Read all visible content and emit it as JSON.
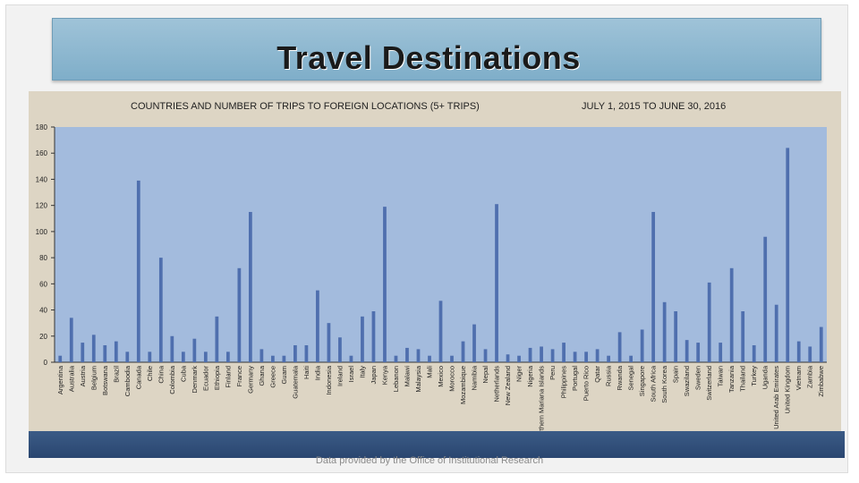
{
  "title": "Travel Destinations",
  "subtitle_left": "COUNTRIES AND NUMBER OF TRIPS TO FOREIGN LOCATIONS (5+ TRIPS)",
  "subtitle_right": "JULY 1, 2015 TO JUNE 30, 2016",
  "footer": "Data provided by the Office of Institutional Research",
  "colors": {
    "bar": "#4f6fae",
    "plot_bg": "#a3bbdd"
  },
  "chart_data": {
    "type": "bar",
    "title": "",
    "xlabel": "",
    "ylabel": "",
    "ylim": [
      0,
      180
    ],
    "yticks": [
      0,
      20,
      40,
      60,
      80,
      100,
      120,
      140,
      160,
      180
    ],
    "grid": false,
    "categories": [
      "Argentina",
      "Australia",
      "Austria",
      "Belgium",
      "Botswana",
      "Brazil",
      "Cambodia",
      "Canada",
      "Chile",
      "China",
      "Colombia",
      "Cuba",
      "Denmark",
      "Ecuador",
      "Ethiopia",
      "Finland",
      "France",
      "Germany",
      "Ghana",
      "Greece",
      "Guam",
      "Guatemala",
      "Haiti",
      "India",
      "Indonesia",
      "Ireland",
      "Israel",
      "Italy",
      "Japan",
      "Kenya",
      "Lebanon",
      "Malawi",
      "Malaysia",
      "Mali",
      "Mexico",
      "Morocco",
      "Mozambique",
      "Namibia",
      "Nepal",
      "Netherlands",
      "New Zealand",
      "Niger",
      "Nigeria",
      "Northern Mariana Islands",
      "Peru",
      "Philippines",
      "Portugal",
      "Puerto Rico",
      "Qatar",
      "Russia",
      "Rwanda",
      "Senegal",
      "Singapore",
      "South Africa",
      "South Korea",
      "Spain",
      "Swaziland",
      "Sweden",
      "Switzerland",
      "Taiwan",
      "Tanzania",
      "Thailand",
      "Turkey",
      "Uganda",
      "United Arab Emirates",
      "United Kingdom",
      "Vietnam",
      "Zambia",
      "Zimbabwe"
    ],
    "values": [
      5,
      34,
      15,
      21,
      13,
      16,
      8,
      139,
      8,
      80,
      20,
      8,
      18,
      8,
      35,
      8,
      72,
      115,
      10,
      5,
      5,
      13,
      13,
      55,
      30,
      19,
      5,
      35,
      39,
      119,
      5,
      11,
      10,
      5,
      47,
      5,
      16,
      29,
      10,
      121,
      6,
      5,
      11,
      12,
      10,
      15,
      8,
      8,
      10,
      5,
      23,
      5,
      25,
      115,
      46,
      39,
      17,
      15,
      61,
      15,
      72,
      39,
      13,
      96,
      44,
      164,
      16,
      12,
      27
    ]
  }
}
